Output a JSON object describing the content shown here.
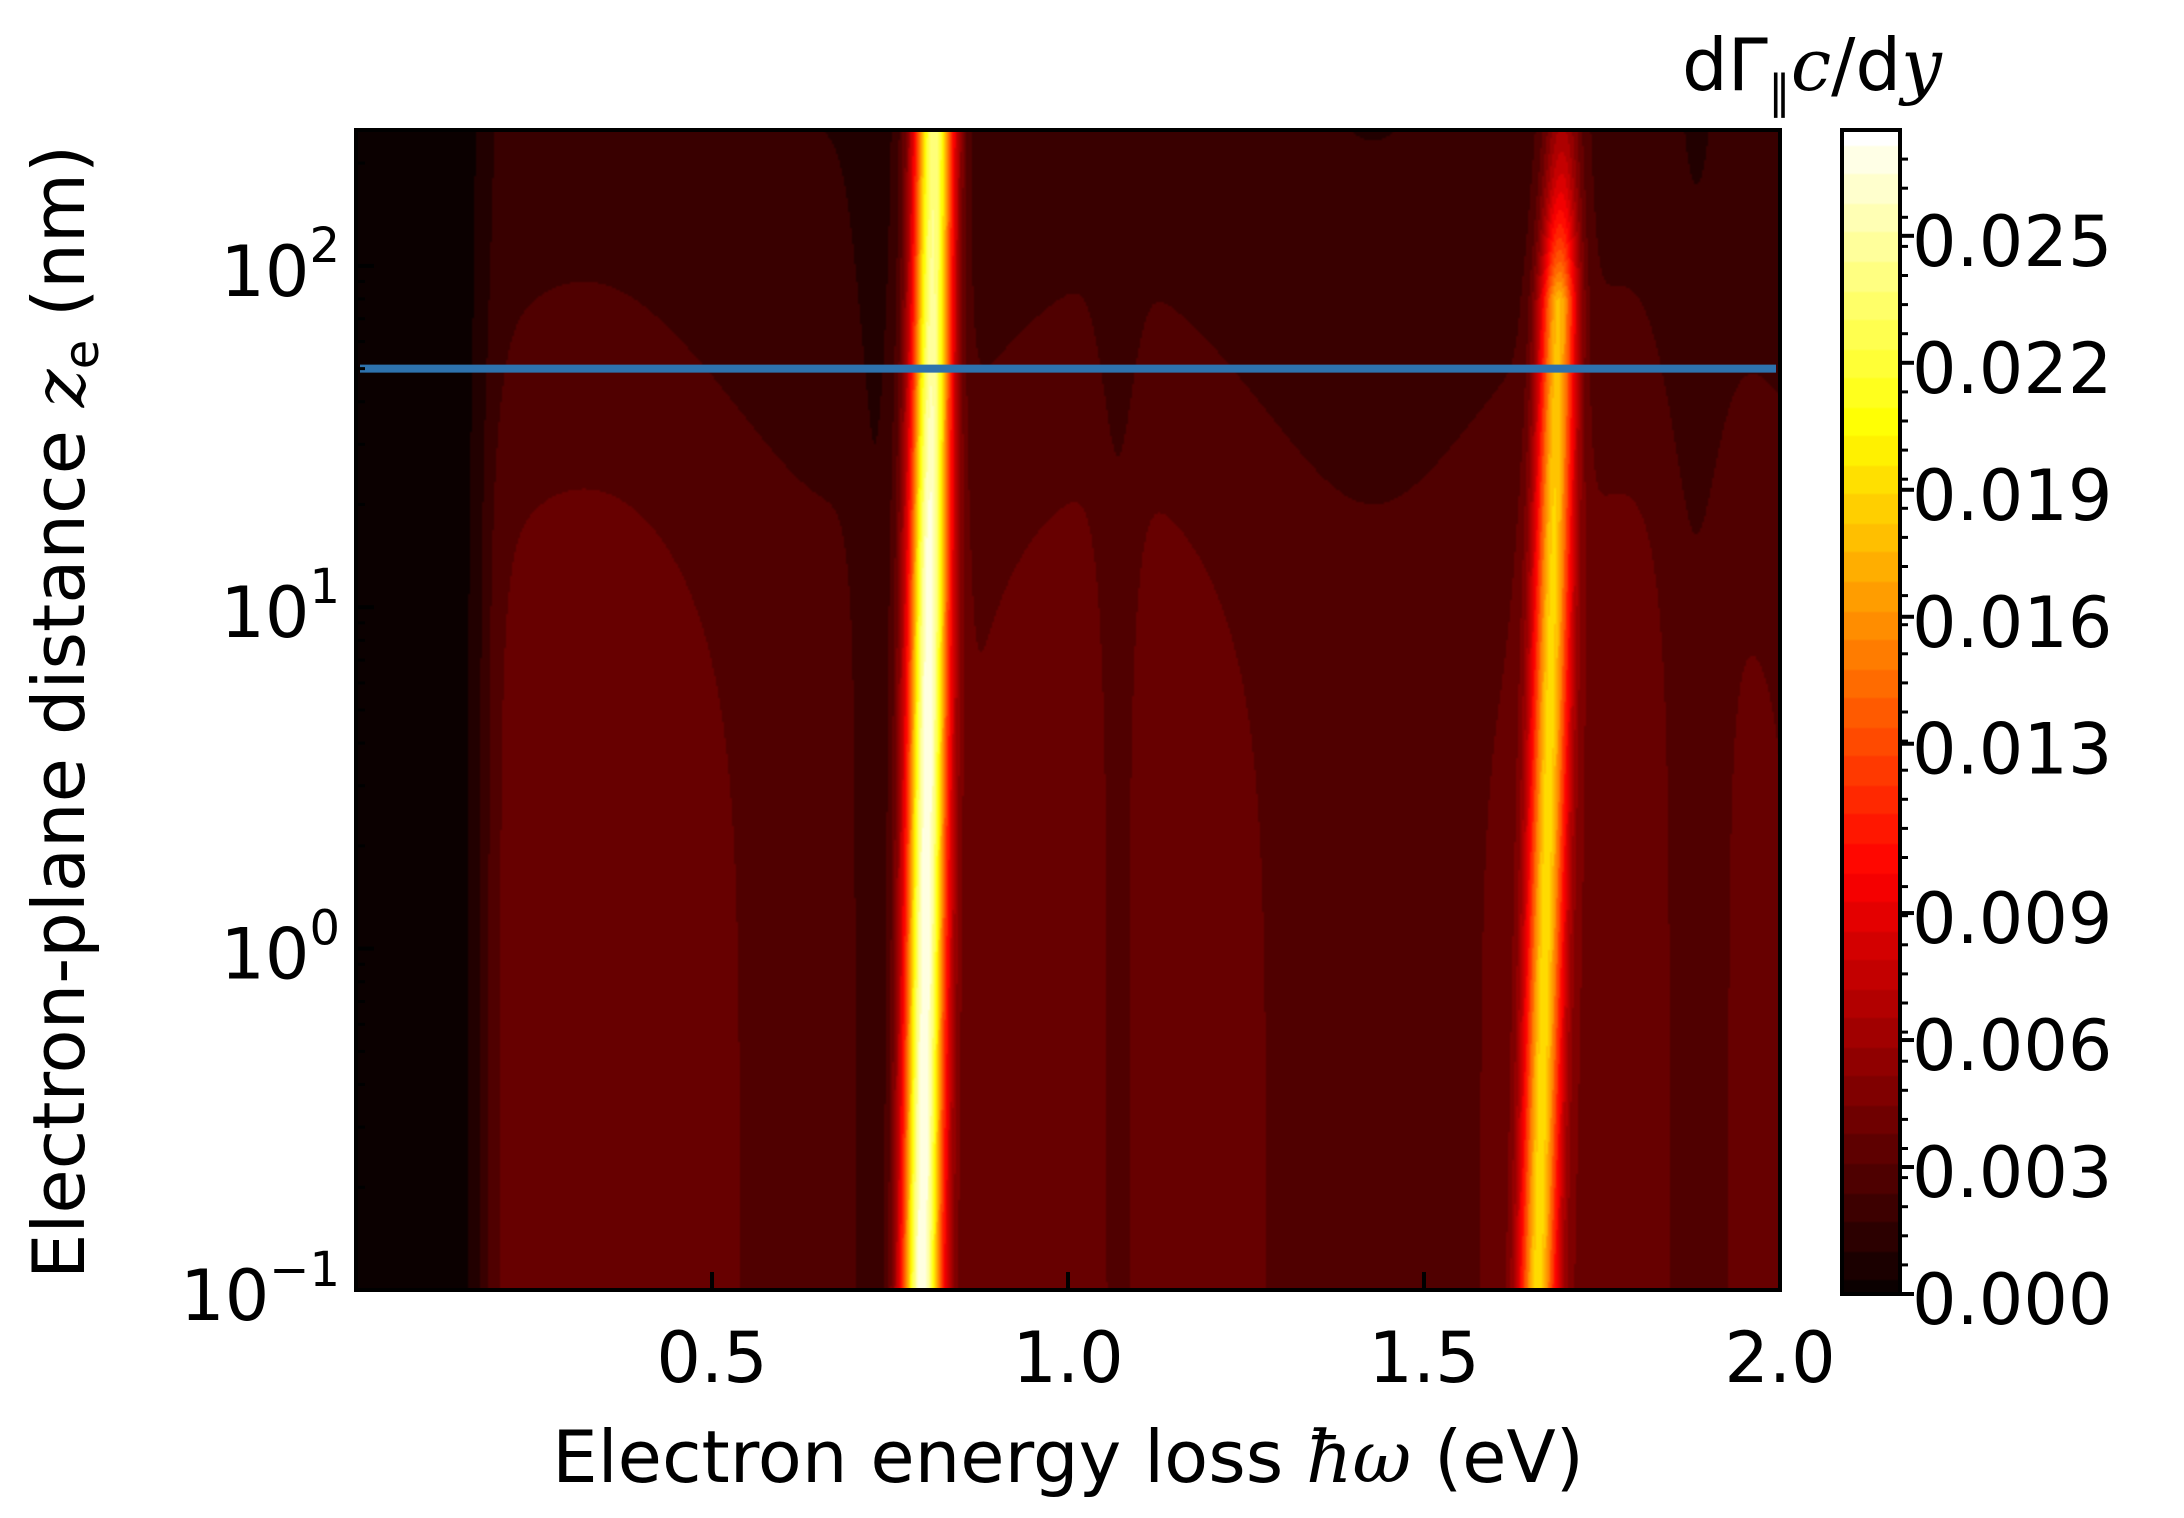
{
  "chart_data": {
    "type": "heatmap",
    "xlabel": "Electron energy loss ħω (eV)",
    "ylabel": "Electron-plane distance z_e (nm)",
    "xlim": [
      0,
      2.0
    ],
    "ylim": [
      0.1,
      250
    ],
    "y_scale": "log",
    "x_ticks": [
      {
        "value": 0.5,
        "label": "0.5"
      },
      {
        "value": 1.0,
        "label": "1.0"
      },
      {
        "value": 1.5,
        "label": "1.5"
      },
      {
        "value": 2.0,
        "label": "2.0"
      }
    ],
    "y_ticks": [
      {
        "value": 0.1,
        "base": "10",
        "exp": "−1"
      },
      {
        "value": 1,
        "base": "10",
        "exp": "0"
      },
      {
        "value": 10,
        "base": "10",
        "exp": "1"
      },
      {
        "value": 100,
        "base": "10",
        "exp": "2"
      }
    ],
    "colorbar": {
      "label": "dΓ∥c/dy",
      "colormap": "hot",
      "range": [
        0,
        0.0275
      ],
      "ticks": [
        "0.000",
        "0.003",
        "0.006",
        "0.009",
        "0.013",
        "0.016",
        "0.019",
        "0.022",
        "0.025"
      ]
    },
    "resonances_eV": [
      0.8,
      1.67
    ],
    "peak_value": 0.0275,
    "horizontal_line": {
      "y": 50,
      "color": "#2e72ad"
    }
  }
}
